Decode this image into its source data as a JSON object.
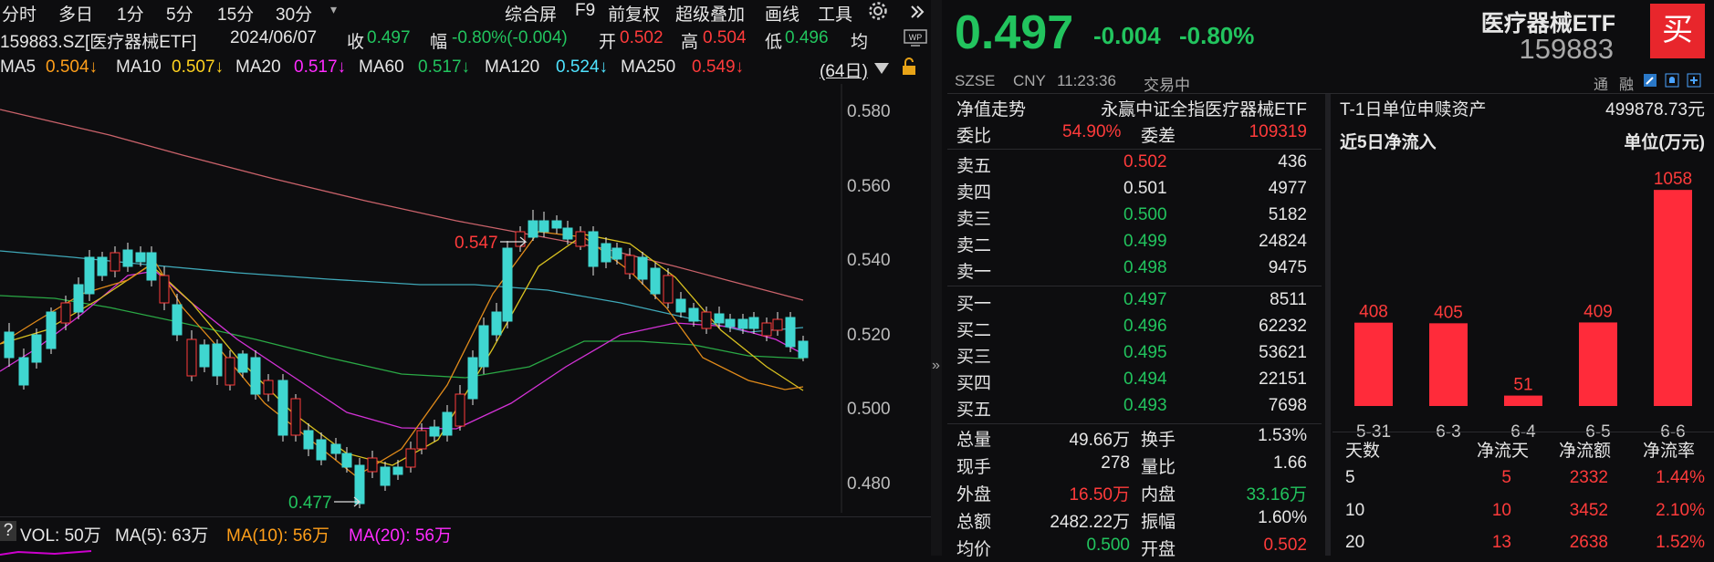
{
  "toolbar": {
    "left": [
      "分时",
      "多日",
      "1分",
      "5分",
      "15分",
      "30分"
    ],
    "dropdown": "▾",
    "right": [
      "综合屏",
      "F9",
      "前复权",
      "超级叠加",
      "画线",
      "工具"
    ]
  },
  "info": {
    "code": "159883.SZ[医疗器械ETF]",
    "date": "2024/06/07",
    "close_label": "收",
    "close": "0.497",
    "chg_label": "幅",
    "chg": "-0.80%(-0.004)",
    "open_label": "开",
    "open": "0.502",
    "high_label": "高",
    "high": "0.504",
    "low_label": "低",
    "low": "0.496",
    "avg_label": "均"
  },
  "ma_line": [
    {
      "label": "MA5",
      "value": "0.504↓",
      "color": "#ff9f1a"
    },
    {
      "label": "MA10",
      "value": "0.507↓",
      "color": "#ffd21f"
    },
    {
      "label": "MA20",
      "value": "0.517↓",
      "color": "#ff2bff"
    },
    {
      "label": "MA60",
      "value": "0.517↓",
      "color": "#22c45e"
    },
    {
      "label": "MA120",
      "value": "0.524↓",
      "color": "#4fe3ff"
    },
    {
      "label": "MA250",
      "value": "0.549↓",
      "color": "#ff3b3b"
    }
  ],
  "period": "(64日)",
  "price_axis": [
    "0.580",
    "0.560",
    "0.540",
    "0.520",
    "0.500",
    "0.480"
  ],
  "annotations": {
    "high": "0.547",
    "low": "0.477"
  },
  "vol_bar": {
    "q": "?",
    "vol": "VOL: 50万",
    "ma5": "MA(5): 63万",
    "ma10": "MA(10): 56万",
    "ma20": "MA(20): 56万"
  },
  "quote": {
    "price": "0.497",
    "change": "-0.004",
    "change_pct": "-0.80%",
    "name": "医疗器械ETF",
    "code": "159883",
    "buy_label": "买",
    "exchange": "SZSE",
    "currency": "CNY",
    "time": "11:23:36",
    "status": "交易中",
    "tong_label": "通",
    "rong_label": "融"
  },
  "order_book": {
    "nav_label": "净值走势",
    "fund_name": "永赢中证全指医疗器械ETF",
    "wb_label": "委比",
    "wb": "54.90%",
    "wc_label": "委差",
    "wc": "109319",
    "asks": [
      {
        "label": "卖五",
        "price": "0.502",
        "vol": "436",
        "color": "red"
      },
      {
        "label": "卖四",
        "price": "0.501",
        "vol": "4977",
        "color": "white"
      },
      {
        "label": "卖三",
        "price": "0.500",
        "vol": "5182",
        "color": "green"
      },
      {
        "label": "卖二",
        "price": "0.499",
        "vol": "24824",
        "color": "green"
      },
      {
        "label": "卖一",
        "price": "0.498",
        "vol": "9475",
        "color": "green"
      }
    ],
    "bids": [
      {
        "label": "买一",
        "price": "0.497",
        "vol": "8511"
      },
      {
        "label": "买二",
        "price": "0.496",
        "vol": "62232"
      },
      {
        "label": "买三",
        "price": "0.495",
        "vol": "53621"
      },
      {
        "label": "买四",
        "price": "0.494",
        "vol": "22151"
      },
      {
        "label": "买五",
        "price": "0.493",
        "vol": "7698"
      }
    ],
    "stats": [
      {
        "l1": "总量",
        "v1": "49.66万",
        "c1": "white",
        "l2": "换手",
        "v2": "1.53%",
        "c2": "white"
      },
      {
        "l1": "现手",
        "v1": "278",
        "c1": "white",
        "l2": "量比",
        "v2": "1.66",
        "c2": "white"
      },
      {
        "l1": "外盘",
        "v1": "16.50万",
        "c1": "red",
        "l2": "内盘",
        "v2": "33.16万",
        "c2": "green"
      },
      {
        "l1": "总额",
        "v1": "2482.22万",
        "c1": "white",
        "l2": "振幅",
        "v2": "1.60%",
        "c2": "white"
      },
      {
        "l1": "均价",
        "v1": "0.500",
        "c1": "green",
        "l2": "开盘",
        "v2": "0.502",
        "c2": "red"
      }
    ]
  },
  "flow_panel": {
    "t1_label": "T-1日单位申赎资产",
    "t1_value": "499878.73元",
    "title": "近5日净流入",
    "unit": "单位(万元)",
    "table_headers": [
      "天数",
      "净流天",
      "净流额",
      "净流率"
    ],
    "table_rows": [
      [
        "5",
        "5",
        "2332",
        "1.44%"
      ],
      [
        "10",
        "10",
        "3452",
        "2.10%"
      ],
      [
        "20",
        "13",
        "2638",
        "1.52%"
      ]
    ]
  },
  "chart_data": {
    "type": "bar",
    "categories": [
      "5-31",
      "6-3",
      "6-4",
      "6-5",
      "6-6"
    ],
    "values": [
      408,
      405,
      51,
      409,
      1058
    ],
    "title": "近5日净流入",
    "ylabel": "单位(万元)",
    "ylim": [
      0,
      1100
    ],
    "bar_color": "#ff2b3a"
  },
  "colors": {
    "up": "#ff3b3b",
    "down": "#22c45e",
    "candle_down": "#3fd6d0",
    "bg": "#0d0d0f"
  }
}
